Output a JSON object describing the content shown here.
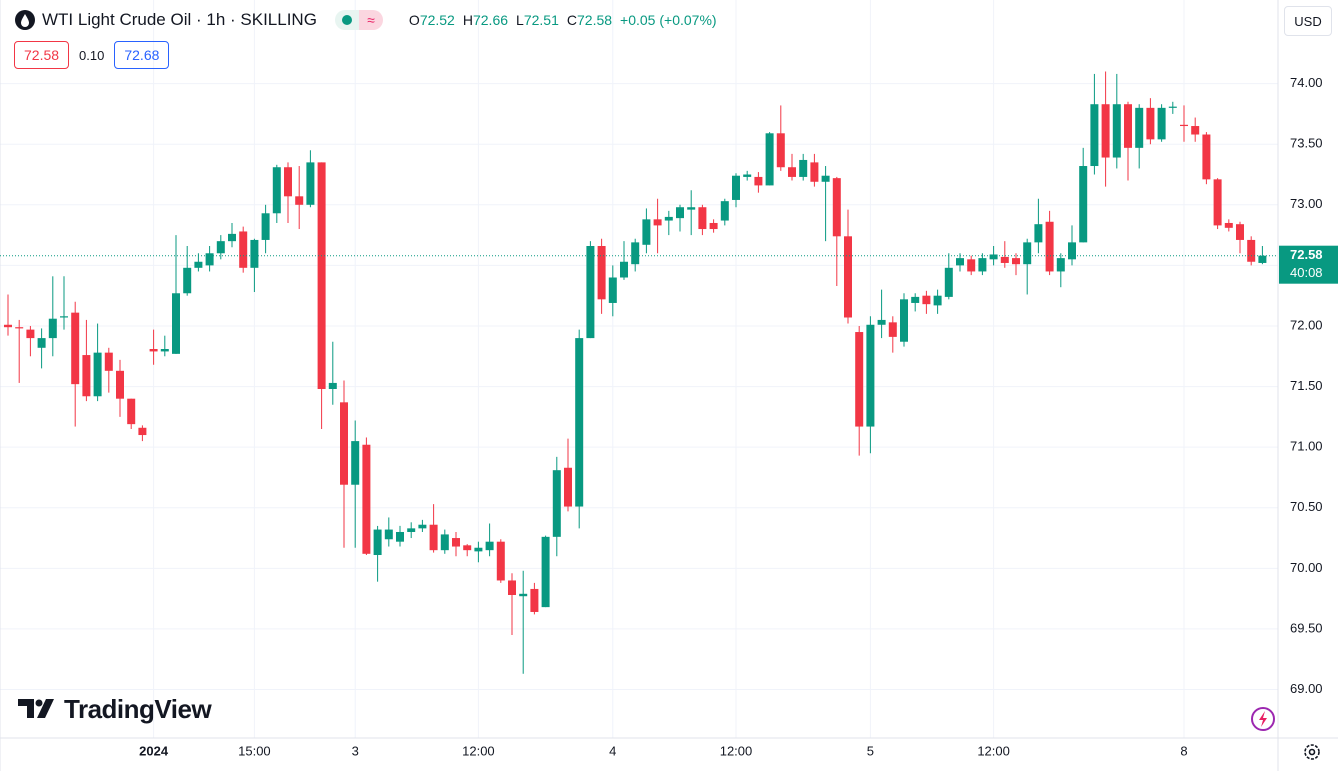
{
  "header": {
    "title": "WTI Light Crude Oil · 1h · SKILLING",
    "ohlc": [
      {
        "key": "O",
        "value": "72.52"
      },
      {
        "key": "H",
        "value": "72.66"
      },
      {
        "key": "L",
        "value": "72.51"
      },
      {
        "key": "C",
        "value": "72.58"
      }
    ],
    "change": "+0.05 (+0.07%)",
    "sell": "72.58",
    "spread": "0.10",
    "buy": "72.68",
    "currency": "USD"
  },
  "brand": "TradingView",
  "chart_data": {
    "type": "candlestick",
    "categories": [
      null,
      null,
      null,
      null,
      null,
      null,
      null,
      null,
      null,
      null,
      null,
      null,
      null,
      "2024",
      null,
      null,
      null,
      null,
      null,
      null,
      null,
      null,
      "15:00",
      null,
      null,
      null,
      null,
      null,
      null,
      null,
      null,
      "3",
      null,
      null,
      null,
      null,
      null,
      null,
      null,
      null,
      null,
      null,
      "12:00",
      null,
      null,
      null,
      null,
      null,
      null,
      null,
      null,
      null,
      null,
      null,
      "4",
      null,
      null,
      null,
      null,
      null,
      null,
      null,
      null,
      null,
      null,
      "12:00",
      null,
      null,
      null,
      null,
      null,
      null,
      null,
      null,
      null,
      null,
      null,
      "5",
      null,
      null,
      null,
      null,
      null,
      null,
      null,
      null,
      null,
      null,
      "12:00",
      null,
      null,
      null,
      null,
      null,
      null,
      null,
      null,
      null,
      null,
      null,
      null,
      null,
      null,
      null,
      null,
      "8",
      null,
      null,
      null,
      null,
      null,
      null,
      null
    ],
    "open": [
      72.01,
      71.99,
      71.97,
      71.82,
      71.9,
      72.07,
      72.11,
      71.76,
      71.42,
      71.78,
      71.63,
      71.4,
      71.16,
      71.81,
      71.79,
      71.77,
      72.27,
      72.48,
      72.5,
      72.6,
      72.7,
      72.78,
      72.48,
      72.71,
      72.93,
      73.31,
      73.07,
      73.0,
      73.35,
      71.48,
      71.37,
      70.69,
      71.02,
      70.11,
      70.24,
      70.22,
      70.3,
      70.33,
      70.36,
      70.15,
      70.25,
      70.19,
      70.14,
      70.15,
      70.22,
      69.9,
      69.77,
      69.83,
      69.68,
      70.26,
      70.83,
      70.51,
      71.9,
      72.66,
      72.19,
      72.4,
      72.51,
      72.67,
      72.88,
      72.87,
      72.89,
      72.96,
      72.98,
      72.85,
      72.87,
      73.04,
      73.23,
      73.23,
      73.16,
      73.59,
      73.31,
      73.23,
      73.35,
      73.19,
      73.22,
      72.74,
      71.95,
      71.17,
      72.01,
      72.03,
      71.87,
      72.19,
      72.25,
      72.17,
      72.24,
      72.5,
      72.55,
      72.45,
      72.55,
      72.57,
      72.56,
      72.51,
      72.69,
      72.86,
      72.45,
      72.55,
      72.69,
      73.32,
      73.83,
      73.39,
      73.83,
      73.47,
      73.8,
      73.54,
      73.8,
      73.66,
      73.65,
      73.58,
      73.21,
      72.85,
      72.84,
      72.71,
      72.52
    ],
    "high": [
      72.26,
      72.05,
      72.0,
      71.98,
      72.41,
      72.41,
      72.2,
      72.05,
      72.02,
      71.82,
      71.72,
      71.4,
      71.18,
      71.97,
      71.92,
      72.75,
      72.66,
      72.6,
      72.66,
      72.75,
      72.85,
      72.82,
      72.72,
      73.0,
      73.33,
      73.35,
      73.32,
      73.45,
      73.35,
      71.87,
      71.55,
      71.22,
      71.08,
      70.35,
      70.42,
      70.35,
      70.38,
      70.4,
      70.53,
      70.32,
      70.3,
      70.2,
      70.22,
      70.37,
      70.24,
      69.96,
      69.98,
      69.88,
      70.27,
      70.92,
      71.07,
      71.97,
      72.7,
      72.72,
      72.5,
      72.7,
      72.72,
      72.97,
      73.05,
      72.95,
      73.0,
      73.12,
      73.0,
      72.88,
      73.05,
      73.26,
      73.28,
      73.27,
      73.6,
      73.82,
      73.42,
      73.42,
      73.42,
      73.32,
      73.23,
      72.96,
      72.0,
      72.08,
      72.3,
      72.08,
      72.27,
      72.27,
      72.29,
      72.3,
      72.6,
      72.6,
      72.58,
      72.6,
      72.66,
      72.7,
      72.6,
      72.72,
      73.05,
      72.95,
      72.6,
      72.83,
      73.47,
      74.08,
      74.1,
      74.08,
      73.85,
      73.83,
      73.88,
      73.83,
      73.85,
      73.82,
      73.72,
      73.6,
      73.22,
      72.88,
      72.86,
      72.74,
      72.66
    ],
    "low": [
      71.92,
      71.53,
      71.75,
      71.65,
      71.75,
      71.97,
      71.17,
      71.38,
      71.38,
      71.45,
      71.25,
      71.15,
      71.05,
      71.68,
      71.75,
      71.77,
      72.25,
      72.45,
      72.45,
      72.55,
      72.65,
      72.44,
      72.28,
      72.6,
      72.85,
      72.85,
      72.8,
      72.98,
      71.15,
      71.35,
      70.17,
      70.17,
      70.11,
      69.89,
      70.18,
      70.18,
      70.25,
      70.3,
      70.13,
      70.12,
      70.1,
      70.1,
      70.05,
      70.1,
      69.88,
      69.45,
      69.13,
      69.62,
      69.68,
      70.1,
      70.47,
      70.33,
      71.9,
      72.1,
      72.08,
      72.38,
      72.45,
      72.6,
      72.6,
      72.75,
      72.78,
      72.75,
      72.75,
      72.77,
      72.83,
      72.98,
      73.2,
      73.1,
      73.16,
      73.28,
      73.2,
      73.2,
      73.15,
      72.7,
      72.33,
      72.02,
      70.93,
      70.95,
      71.9,
      71.78,
      71.83,
      72.12,
      72.1,
      72.1,
      72.22,
      72.45,
      72.42,
      72.42,
      72.5,
      72.48,
      72.42,
      72.26,
      72.6,
      72.42,
      72.32,
      72.5,
      72.69,
      73.25,
      73.15,
      73.3,
      73.2,
      73.3,
      73.5,
      73.52,
      73.75,
      73.52,
      73.52,
      73.17,
      72.8,
      72.78,
      72.6,
      72.5,
      72.51
    ],
    "close": [
      71.99,
      71.98,
      71.9,
      71.9,
      72.06,
      72.08,
      71.52,
      71.42,
      71.78,
      71.63,
      71.4,
      71.19,
      71.1,
      71.79,
      71.81,
      72.27,
      72.48,
      72.53,
      72.6,
      72.7,
      72.76,
      72.48,
      72.71,
      72.93,
      73.31,
      73.07,
      73.0,
      73.35,
      71.48,
      71.53,
      70.69,
      71.05,
      70.12,
      70.32,
      70.32,
      70.3,
      70.33,
      70.36,
      70.15,
      70.28,
      70.18,
      70.15,
      70.17,
      70.22,
      69.9,
      69.78,
      69.79,
      69.64,
      70.26,
      70.81,
      70.51,
      71.9,
      72.66,
      72.22,
      72.4,
      72.53,
      72.69,
      72.88,
      72.83,
      72.9,
      72.98,
      72.98,
      72.8,
      72.8,
      73.03,
      73.24,
      73.25,
      73.16,
      73.59,
      73.31,
      73.23,
      73.37,
      73.19,
      73.24,
      72.74,
      72.07,
      71.17,
      72.01,
      72.05,
      71.91,
      72.22,
      72.24,
      72.18,
      72.25,
      72.48,
      72.56,
      72.45,
      72.56,
      72.59,
      72.52,
      72.51,
      72.69,
      72.84,
      72.45,
      72.56,
      72.69,
      73.32,
      73.83,
      73.39,
      73.83,
      73.47,
      73.8,
      73.54,
      73.8,
      73.81,
      73.65,
      73.58,
      73.21,
      72.83,
      72.81,
      72.71,
      72.53,
      72.58
    ],
    "ylim": [
      68.6,
      74.69
    ],
    "yticks": [
      {
        "value": 69,
        "label": "69.00"
      },
      {
        "value": 69.5,
        "label": "69.50"
      },
      {
        "value": 70,
        "label": "70.00"
      },
      {
        "value": 70.5,
        "label": "70.50"
      },
      {
        "value": 71,
        "label": "71.00"
      },
      {
        "value": 71.5,
        "label": "71.50"
      },
      {
        "value": 72,
        "label": "72.00"
      },
      {
        "value": 72.5,
        "label": "72.50"
      },
      {
        "value": 73,
        "label": "73.00"
      },
      {
        "value": 73.5,
        "label": "73.50"
      },
      {
        "value": 74,
        "label": "74.00"
      }
    ],
    "up_color": "#089981",
    "down_color": "#f23645",
    "grid": true,
    "last_price": {
      "value": 72.58,
      "label": "72.58"
    },
    "countdown": "40:08"
  }
}
